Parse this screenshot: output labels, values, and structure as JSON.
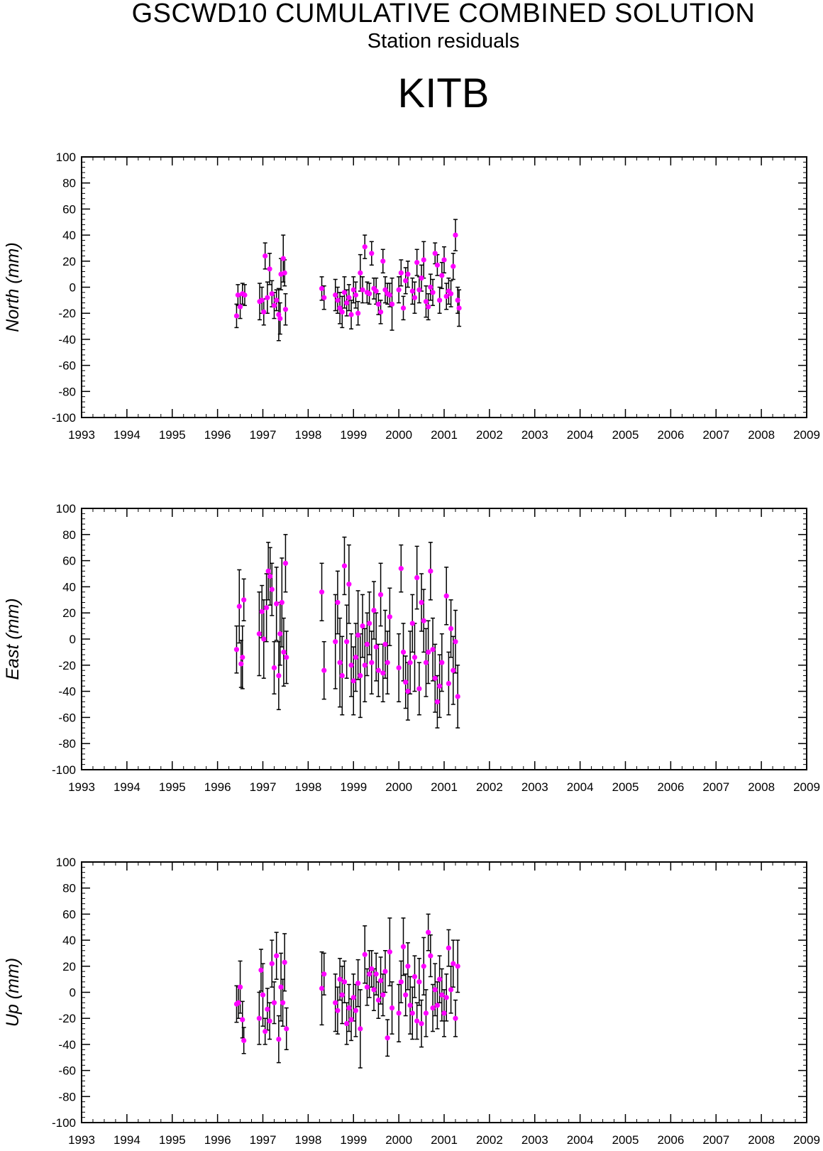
{
  "header": {
    "title": "GSCWD10 CUMULATIVE COMBINED SOLUTION",
    "subtitle": "Station residuals",
    "station": "KITB"
  },
  "colors": {
    "point": "#ff00ff",
    "errorbar": "#000000",
    "axis": "#000000"
  },
  "chart_data": [
    {
      "type": "scatter",
      "ylabel": "North (mm)",
      "xlim": [
        1993,
        2009
      ],
      "ylim": [
        -100,
        100
      ],
      "x_ticks": [
        "1993",
        "1994",
        "1995",
        "1996",
        "1997",
        "1998",
        "1999",
        "2000",
        "2001",
        "2002",
        "2003",
        "2004",
        "2005",
        "2006",
        "2007",
        "2008",
        "2009"
      ],
      "y_ticks": [
        "100",
        "80",
        "60",
        "40",
        "20",
        "0",
        "-20",
        "-40",
        "-60",
        "-80",
        "-100"
      ],
      "errorbars": true,
      "points": [
        [
          1996.42,
          -22,
          9
        ],
        [
          1996.45,
          -6,
          8
        ],
        [
          1996.5,
          -15,
          9
        ],
        [
          1996.55,
          -5,
          8
        ],
        [
          1996.6,
          -6,
          8
        ],
        [
          1996.93,
          -11,
          14
        ],
        [
          1996.98,
          -10,
          10
        ],
        [
          1997.02,
          -19,
          10
        ],
        [
          1997.05,
          24,
          10
        ],
        [
          1997.1,
          -8,
          12
        ],
        [
          1997.15,
          14,
          12
        ],
        [
          1997.2,
          -5,
          10
        ],
        [
          1997.25,
          -14,
          10
        ],
        [
          1997.3,
          -10,
          8
        ],
        [
          1997.35,
          -21,
          20
        ],
        [
          1997.38,
          -24,
          12
        ],
        [
          1997.4,
          10,
          12
        ],
        [
          1997.45,
          22,
          18
        ],
        [
          1997.48,
          11,
          10
        ],
        [
          1997.5,
          -17,
          12
        ],
        [
          1998.3,
          -1,
          9
        ],
        [
          1998.35,
          -8,
          9
        ],
        [
          1998.6,
          -6,
          12
        ],
        [
          1998.65,
          -10,
          10
        ],
        [
          1998.7,
          -16,
          12
        ],
        [
          1998.75,
          -19,
          12
        ],
        [
          1998.8,
          -4,
          12
        ],
        [
          1998.85,
          -12,
          10
        ],
        [
          1998.9,
          -8,
          10
        ],
        [
          1998.95,
          -21,
          11
        ],
        [
          1999.0,
          -2,
          10
        ],
        [
          1999.05,
          -6,
          10
        ],
        [
          1999.1,
          -20,
          9
        ],
        [
          1999.15,
          11,
          14
        ],
        [
          1999.2,
          -2,
          10
        ],
        [
          1999.25,
          31,
          9
        ],
        [
          1999.3,
          -4,
          8
        ],
        [
          1999.35,
          -5,
          8
        ],
        [
          1999.4,
          26,
          9
        ],
        [
          1999.45,
          -1,
          8
        ],
        [
          1999.5,
          -3,
          10
        ],
        [
          1999.55,
          -13,
          8
        ],
        [
          1999.6,
          -19,
          9
        ],
        [
          1999.65,
          20,
          9
        ],
        [
          1999.7,
          -2,
          10
        ],
        [
          1999.75,
          -5,
          8
        ],
        [
          1999.8,
          -6,
          9
        ],
        [
          1999.85,
          -13,
          20
        ],
        [
          2000.0,
          -2,
          10
        ],
        [
          2000.05,
          11,
          10
        ],
        [
          2000.1,
          -16,
          9
        ],
        [
          2000.15,
          5,
          10
        ],
        [
          2000.2,
          10,
          10
        ],
        [
          2000.3,
          -3,
          10
        ],
        [
          2000.35,
          -8,
          12
        ],
        [
          2000.4,
          19,
          10
        ],
        [
          2000.45,
          -2,
          10
        ],
        [
          2000.5,
          7,
          10
        ],
        [
          2000.55,
          21,
          14
        ],
        [
          2000.6,
          -11,
          12
        ],
        [
          2000.65,
          -15,
          10
        ],
        [
          2000.7,
          0,
          10
        ],
        [
          2000.75,
          -4,
          10
        ],
        [
          2000.8,
          26,
          8
        ],
        [
          2000.85,
          17,
          8
        ],
        [
          2000.9,
          -10,
          10
        ],
        [
          2000.95,
          9,
          10
        ],
        [
          2001.0,
          21,
          10
        ],
        [
          2001.05,
          -7,
          10
        ],
        [
          2001.1,
          -3,
          10
        ],
        [
          2001.15,
          -5,
          10
        ],
        [
          2001.2,
          16,
          10
        ],
        [
          2001.25,
          40,
          12
        ],
        [
          2001.3,
          -10,
          10
        ],
        [
          2001.33,
          -16,
          14
        ]
      ]
    },
    {
      "type": "scatter",
      "ylabel": "East (mm)",
      "xlim": [
        1993,
        2009
      ],
      "ylim": [
        -100,
        100
      ],
      "x_ticks": [
        "1993",
        "1994",
        "1995",
        "1996",
        "1997",
        "1998",
        "1999",
        "2000",
        "2001",
        "2002",
        "2003",
        "2004",
        "2005",
        "2006",
        "2007",
        "2008",
        "2009"
      ],
      "y_ticks": [
        "100",
        "80",
        "60",
        "40",
        "20",
        "0",
        "-20",
        "-40",
        "-60",
        "-80",
        "-100"
      ],
      "errorbars": true,
      "points": [
        [
          1996.42,
          -8,
          18
        ],
        [
          1996.48,
          25,
          28
        ],
        [
          1996.52,
          -19,
          18
        ],
        [
          1996.58,
          30,
          16
        ],
        [
          1996.55,
          -14,
          24
        ],
        [
          1996.92,
          4,
          32
        ],
        [
          1996.98,
          21,
          20
        ],
        [
          1997.02,
          0,
          30
        ],
        [
          1997.08,
          24,
          26
        ],
        [
          1997.12,
          52,
          22
        ],
        [
          1997.16,
          48,
          22
        ],
        [
          1997.2,
          38,
          20
        ],
        [
          1997.25,
          -22,
          20
        ],
        [
          1997.3,
          27,
          28
        ],
        [
          1997.35,
          -28,
          26
        ],
        [
          1997.38,
          4,
          24
        ],
        [
          1997.42,
          28,
          34
        ],
        [
          1997.46,
          -10,
          26
        ],
        [
          1997.5,
          58,
          22
        ],
        [
          1997.52,
          -14,
          20
        ],
        [
          1998.3,
          36,
          22
        ],
        [
          1998.35,
          -24,
          22
        ],
        [
          1998.6,
          -2,
          36
        ],
        [
          1998.65,
          28,
          24
        ],
        [
          1998.7,
          -18,
          34
        ],
        [
          1998.75,
          -28,
          30
        ],
        [
          1998.8,
          56,
          22
        ],
        [
          1998.85,
          -2,
          28
        ],
        [
          1998.9,
          42,
          30
        ],
        [
          1998.95,
          -20,
          24
        ],
        [
          1999.0,
          -32,
          26
        ],
        [
          1999.05,
          -14,
          26
        ],
        [
          1999.1,
          3,
          34
        ],
        [
          1999.15,
          -28,
          32
        ],
        [
          1999.2,
          10,
          24
        ],
        [
          1999.25,
          -20,
          28
        ],
        [
          1999.3,
          -4,
          24
        ],
        [
          1999.35,
          12,
          24
        ],
        [
          1999.4,
          -18,
          24
        ],
        [
          1999.45,
          22,
          22
        ],
        [
          1999.5,
          -6,
          26
        ],
        [
          1999.55,
          -24,
          20
        ],
        [
          1999.6,
          34,
          24
        ],
        [
          1999.65,
          -26,
          22
        ],
        [
          1999.7,
          -4,
          26
        ],
        [
          1999.75,
          -18,
          24
        ],
        [
          1999.8,
          17,
          22
        ],
        [
          2000.0,
          -22,
          26
        ],
        [
          2000.05,
          54,
          18
        ],
        [
          2000.1,
          -10,
          22
        ],
        [
          2000.15,
          -33,
          20
        ],
        [
          2000.2,
          -40,
          22
        ],
        [
          2000.25,
          -18,
          24
        ],
        [
          2000.3,
          12,
          22
        ],
        [
          2000.35,
          -14,
          26
        ],
        [
          2000.4,
          47,
          24
        ],
        [
          2000.45,
          -38,
          20
        ],
        [
          2000.5,
          28,
          22
        ],
        [
          2000.55,
          14,
          24
        ],
        [
          2000.6,
          -18,
          26
        ],
        [
          2000.65,
          -10,
          24
        ],
        [
          2000.7,
          52,
          22
        ],
        [
          2000.75,
          -8,
          24
        ],
        [
          2000.8,
          -30,
          26
        ],
        [
          2000.85,
          -48,
          20
        ],
        [
          2000.9,
          -36,
          24
        ],
        [
          2000.95,
          -18,
          22
        ],
        [
          2001.05,
          33,
          22
        ],
        [
          2001.1,
          -34,
          24
        ],
        [
          2001.15,
          8,
          22
        ],
        [
          2001.2,
          -24,
          26
        ],
        [
          2001.25,
          -2,
          24
        ],
        [
          2001.3,
          -44,
          24
        ]
      ]
    },
    {
      "type": "scatter",
      "ylabel": "Up (mm)",
      "xlim": [
        1993,
        2009
      ],
      "ylim": [
        -100,
        100
      ],
      "x_ticks": [
        "1993",
        "1994",
        "1995",
        "1996",
        "1997",
        "1998",
        "1999",
        "2000",
        "2001",
        "2002",
        "2003",
        "2004",
        "2005",
        "2006",
        "2007",
        "2008",
        "2009"
      ],
      "y_ticks": [
        "100",
        "80",
        "60",
        "40",
        "20",
        "0",
        "-20",
        "-40",
        "-60",
        "-80",
        "-100"
      ],
      "errorbars": true,
      "points": [
        [
          1996.42,
          -9,
          14
        ],
        [
          1996.46,
          -8,
          12
        ],
        [
          1996.5,
          4,
          20
        ],
        [
          1996.55,
          -21,
          14
        ],
        [
          1996.58,
          -37,
          10
        ],
        [
          1996.92,
          -20,
          20
        ],
        [
          1996.96,
          17,
          16
        ],
        [
          1997.0,
          -2,
          24
        ],
        [
          1997.05,
          -30,
          10
        ],
        [
          1997.1,
          -13,
          16
        ],
        [
          1997.15,
          -22,
          14
        ],
        [
          1997.2,
          22,
          18
        ],
        [
          1997.25,
          -8,
          16
        ],
        [
          1997.3,
          28,
          18
        ],
        [
          1997.35,
          -36,
          18
        ],
        [
          1997.4,
          4,
          26
        ],
        [
          1997.44,
          -8,
          18
        ],
        [
          1997.48,
          23,
          22
        ],
        [
          1997.52,
          -28,
          16
        ],
        [
          1998.3,
          3,
          28
        ],
        [
          1998.35,
          14,
          16
        ],
        [
          1998.6,
          -8,
          22
        ],
        [
          1998.65,
          -14,
          18
        ],
        [
          1998.7,
          10,
          16
        ],
        [
          1998.75,
          -2,
          22
        ],
        [
          1998.8,
          8,
          16
        ],
        [
          1998.85,
          -24,
          16
        ],
        [
          1998.9,
          -12,
          18
        ],
        [
          1998.95,
          -21,
          16
        ],
        [
          1999.0,
          -4,
          18
        ],
        [
          1999.05,
          -14,
          20
        ],
        [
          1999.1,
          7,
          18
        ],
        [
          1999.15,
          -28,
          30
        ],
        [
          1999.25,
          29,
          22
        ],
        [
          1999.3,
          4,
          14
        ],
        [
          1999.35,
          14,
          18
        ],
        [
          1999.4,
          18,
          14
        ],
        [
          1999.45,
          2,
          16
        ],
        [
          1999.5,
          14,
          16
        ],
        [
          1999.55,
          -6,
          14
        ],
        [
          1999.6,
          9,
          18
        ],
        [
          1999.65,
          -2,
          16
        ],
        [
          1999.7,
          16,
          16
        ],
        [
          1999.75,
          -35,
          14
        ],
        [
          1999.8,
          31,
          26
        ],
        [
          1999.85,
          -12,
          20
        ],
        [
          2000.0,
          -16,
          22
        ],
        [
          2000.05,
          8,
          16
        ],
        [
          2000.1,
          35,
          22
        ],
        [
          2000.15,
          -2,
          16
        ],
        [
          2000.2,
          20,
          18
        ],
        [
          2000.25,
          -10,
          22
        ],
        [
          2000.3,
          -16,
          20
        ],
        [
          2000.35,
          12,
          16
        ],
        [
          2000.4,
          -22,
          14
        ],
        [
          2000.45,
          8,
          18
        ],
        [
          2000.5,
          -24,
          18
        ],
        [
          2000.55,
          20,
          22
        ],
        [
          2000.6,
          -16,
          18
        ],
        [
          2000.65,
          46,
          14
        ],
        [
          2000.7,
          28,
          16
        ],
        [
          2000.75,
          -12,
          18
        ],
        [
          2000.8,
          2,
          20
        ],
        [
          2000.85,
          -10,
          18
        ],
        [
          2000.9,
          10,
          18
        ],
        [
          2000.95,
          -2,
          20
        ],
        [
          2001.0,
          -16,
          18
        ],
        [
          2001.05,
          -4,
          18
        ],
        [
          2001.1,
          34,
          14
        ],
        [
          2001.15,
          2,
          18
        ],
        [
          2001.2,
          22,
          18
        ],
        [
          2001.25,
          -20,
          14
        ],
        [
          2001.3,
          20,
          20
        ]
      ]
    }
  ]
}
